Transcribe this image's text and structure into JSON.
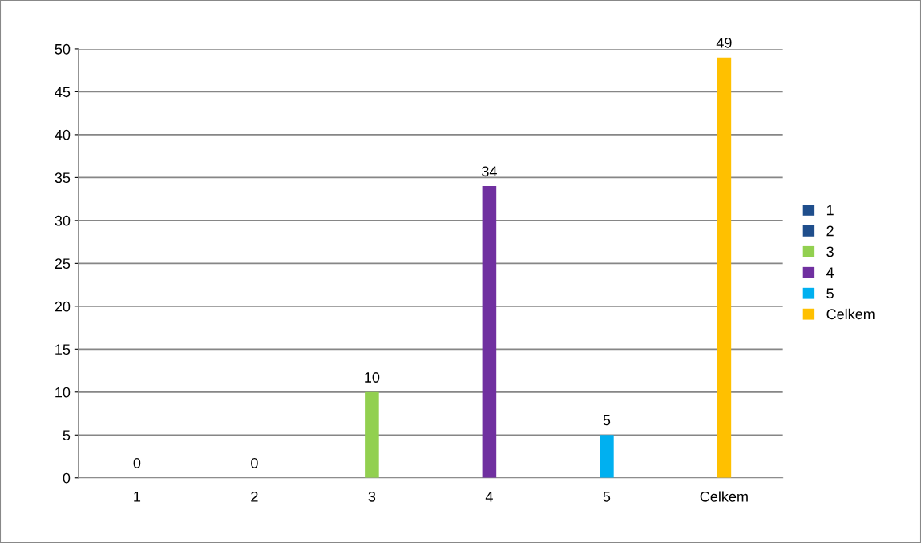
{
  "chart_data": {
    "type": "bar",
    "categories": [
      "1",
      "2",
      "3",
      "4",
      "5",
      "Celkem"
    ],
    "series": [
      {
        "name": "1",
        "color": "#1f4e8c",
        "values": [
          0,
          null,
          null,
          null,
          null,
          null
        ]
      },
      {
        "name": "2",
        "color": "#1f4e8c",
        "values": [
          null,
          0,
          null,
          null,
          null,
          null
        ]
      },
      {
        "name": "3",
        "color": "#92d050",
        "values": [
          null,
          null,
          10,
          null,
          null,
          null
        ]
      },
      {
        "name": "4",
        "color": "#7030a0",
        "values": [
          null,
          null,
          null,
          34,
          null,
          null
        ]
      },
      {
        "name": "5",
        "color": "#00b0f0",
        "values": [
          null,
          null,
          null,
          null,
          5,
          null
        ]
      },
      {
        "name": "Celkem",
        "color": "#ffc000",
        "values": [
          null,
          null,
          null,
          null,
          null,
          49
        ]
      }
    ],
    "ylim": [
      0,
      50
    ],
    "yticks": [
      0,
      5,
      10,
      15,
      20,
      25,
      30,
      35,
      40,
      45,
      50
    ],
    "grid": "y",
    "data_labels": true,
    "legend": "right"
  }
}
